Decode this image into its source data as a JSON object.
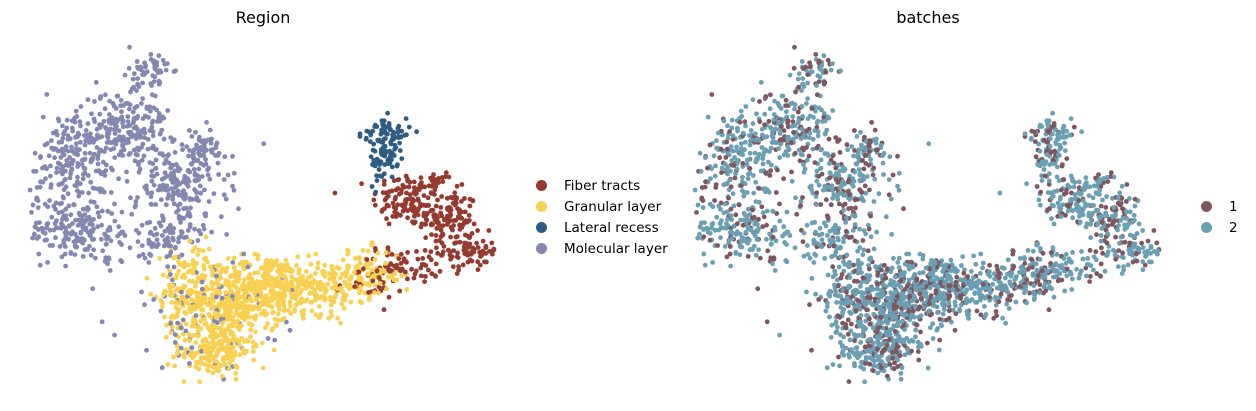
{
  "chart_data": [
    {
      "type": "scatter",
      "title": "Region",
      "xlabel": "",
      "ylabel": "",
      "grid": false,
      "axes_visible": false,
      "legend_placement": "right",
      "series": [
        {
          "name": "Fiber tracts",
          "color": "#963A30",
          "clusters": [
            {
              "cx": 7.4,
              "cy": 6.0,
              "sx": 0.55,
              "sy": 0.45,
              "n": 120
            },
            {
              "cx": 8.6,
              "cy": 5.4,
              "sx": 0.45,
              "sy": 0.45,
              "n": 110
            },
            {
              "cx": 9.2,
              "cy": 4.3,
              "sx": 0.45,
              "sy": 0.3,
              "n": 80
            },
            {
              "cx": 7.3,
              "cy": 3.9,
              "sx": 0.6,
              "sy": 0.3,
              "n": 60
            },
            {
              "cx": 6.2,
              "cy": 3.3,
              "sx": 0.5,
              "sy": 0.3,
              "n": 30
            },
            {
              "cx": 8.3,
              "cy": 6.6,
              "sx": 0.2,
              "sy": 0.15,
              "n": 15
            }
          ]
        },
        {
          "name": "Granular layer",
          "color": "#F8D153",
          "clusters": [
            {
              "cx": 2.0,
              "cy": 2.5,
              "sx": 0.75,
              "sy": 0.65,
              "n": 350
            },
            {
              "cx": 1.5,
              "cy": 1.1,
              "sx": 0.55,
              "sy": 0.45,
              "n": 160
            },
            {
              "cx": 3.2,
              "cy": 3.2,
              "sx": 0.7,
              "sy": 0.5,
              "n": 230
            },
            {
              "cx": 4.8,
              "cy": 3.2,
              "sx": 0.7,
              "sy": 0.45,
              "n": 170
            },
            {
              "cx": 6.2,
              "cy": 3.6,
              "sx": 0.5,
              "sy": 0.4,
              "n": 90
            },
            {
              "cx": 0.6,
              "cy": 2.9,
              "sx": 0.4,
              "sy": 0.4,
              "n": 70
            },
            {
              "cx": 1.0,
              "cy": 4.0,
              "sx": 0.5,
              "sy": 0.3,
              "n": 50
            }
          ]
        },
        {
          "name": "Lateral recess",
          "color": "#2F5C82",
          "clusters": [
            {
              "cx": 6.7,
              "cy": 7.3,
              "sx": 0.25,
              "sy": 0.4,
              "n": 70
            },
            {
              "cx": 6.4,
              "cy": 8.1,
              "sx": 0.25,
              "sy": 0.2,
              "n": 25
            },
            {
              "cx": 7.0,
              "cy": 8.2,
              "sx": 0.25,
              "sy": 0.25,
              "n": 30
            }
          ]
        },
        {
          "name": "Molecular layer",
          "color": "#8488B1",
          "clusters": [
            {
              "cx": -1.2,
              "cy": 8.3,
              "sx": 0.7,
              "sy": 0.6,
              "n": 200
            },
            {
              "cx": -0.4,
              "cy": 10.0,
              "sx": 0.3,
              "sy": 0.5,
              "n": 60
            },
            {
              "cx": -2.7,
              "cy": 7.2,
              "sx": 0.7,
              "sy": 0.8,
              "n": 190
            },
            {
              "cx": -2.5,
              "cy": 5.0,
              "sx": 0.8,
              "sy": 0.5,
              "n": 170
            },
            {
              "cx": 0.5,
              "cy": 6.5,
              "sx": 0.7,
              "sy": 0.6,
              "n": 170
            },
            {
              "cx": 0.1,
              "cy": 4.8,
              "sx": 0.6,
              "sy": 0.4,
              "n": 90
            },
            {
              "cx": 1.2,
              "cy": 2.4,
              "sx": 1.2,
              "sy": 0.9,
              "n": 90
            },
            {
              "cx": 1.2,
              "cy": 7.6,
              "sx": 0.4,
              "sy": 0.35,
              "n": 50
            }
          ]
        }
      ]
    },
    {
      "type": "scatter",
      "title": "batches",
      "xlabel": "",
      "ylabel": "",
      "grid": false,
      "axes_visible": false,
      "legend_placement": "right",
      "series": [
        {
          "name": "1",
          "color": "#7E5660",
          "fraction": 0.3
        },
        {
          "name": "2",
          "color": "#6A9FB4",
          "fraction": 0.7
        }
      ]
    }
  ]
}
